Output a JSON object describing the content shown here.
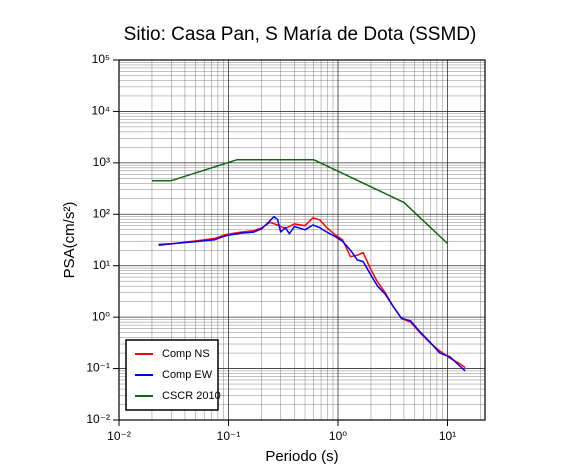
{
  "chart_data": {
    "type": "line",
    "title": "Sitio: Casa Pan, S María de Dota (SSMD)",
    "xlabel": "Periodo (s)",
    "ylabel": "PSA(cm/s²)",
    "xscale": "log",
    "yscale": "log",
    "grid": true,
    "legend": "lower left",
    "xlim": [
      0.01,
      22
    ],
    "ylim": [
      0.01,
      100000
    ],
    "xticks": [
      {
        "value": 0.01,
        "label": "10⁻²"
      },
      {
        "value": 0.1,
        "label": "10⁻¹"
      },
      {
        "value": 1,
        "label": "10⁰"
      },
      {
        "value": 10,
        "label": "10¹"
      }
    ],
    "yticks": [
      {
        "value": 0.01,
        "label": "10⁻²"
      },
      {
        "value": 0.1,
        "label": "10⁻¹"
      },
      {
        "value": 1,
        "label": "10⁰"
      },
      {
        "value": 10,
        "label": "10¹"
      },
      {
        "value": 100,
        "label": "10²"
      },
      {
        "value": 1000,
        "label": "10³"
      },
      {
        "value": 10000,
        "label": "10⁴"
      },
      {
        "value": 100000,
        "label": "10⁵"
      }
    ],
    "series": [
      {
        "name": "Comp NS",
        "color": "#ff0000",
        "x": [
          0.023,
          0.032,
          0.055,
          0.075,
          0.093,
          0.13,
          0.17,
          0.2,
          0.24,
          0.28,
          0.33,
          0.4,
          0.5,
          0.59,
          0.68,
          0.79,
          0.94,
          1.1,
          1.3,
          1.5,
          1.7,
          2.0,
          2.3,
          2.7,
          3.2,
          3.8,
          4.6,
          5.6,
          7.0,
          8.5,
          10.5,
          12.5,
          14.5
        ],
        "values": [
          26,
          27,
          31,
          34,
          40,
          45,
          48,
          54,
          70,
          62,
          53,
          65,
          60,
          85,
          78,
          55,
          40,
          32,
          15,
          16,
          18,
          8.3,
          4.8,
          3.0,
          1.6,
          0.94,
          0.8,
          0.5,
          0.31,
          0.22,
          0.16,
          0.13,
          0.105
        ]
      },
      {
        "name": "Comp EW",
        "color": "#0000ff",
        "x": [
          0.023,
          0.032,
          0.055,
          0.075,
          0.093,
          0.13,
          0.17,
          0.2,
          0.24,
          0.26,
          0.28,
          0.3,
          0.33,
          0.36,
          0.4,
          0.5,
          0.59,
          0.68,
          0.79,
          0.94,
          1.1,
          1.3,
          1.5,
          1.7,
          2.0,
          2.3,
          2.7,
          3.2,
          3.8,
          4.6,
          5.6,
          7.0,
          8.5,
          10.5,
          12.5,
          14.5
        ],
        "values": [
          25,
          27,
          30,
          32,
          38,
          43,
          45,
          52,
          75,
          90,
          80,
          45,
          55,
          42,
          58,
          50,
          62,
          55,
          45,
          37,
          30,
          20,
          13,
          12,
          6.5,
          4.0,
          2.8,
          1.6,
          0.95,
          0.85,
          0.52,
          0.32,
          0.2,
          0.17,
          0.12,
          0.09
        ]
      },
      {
        "name": "CSCR 2010",
        "color": "#116611",
        "x": [
          0.02,
          0.03,
          0.12,
          0.6,
          4,
          10
        ],
        "values": [
          450,
          450,
          1150,
          1150,
          170,
          27
        ]
      }
    ]
  }
}
